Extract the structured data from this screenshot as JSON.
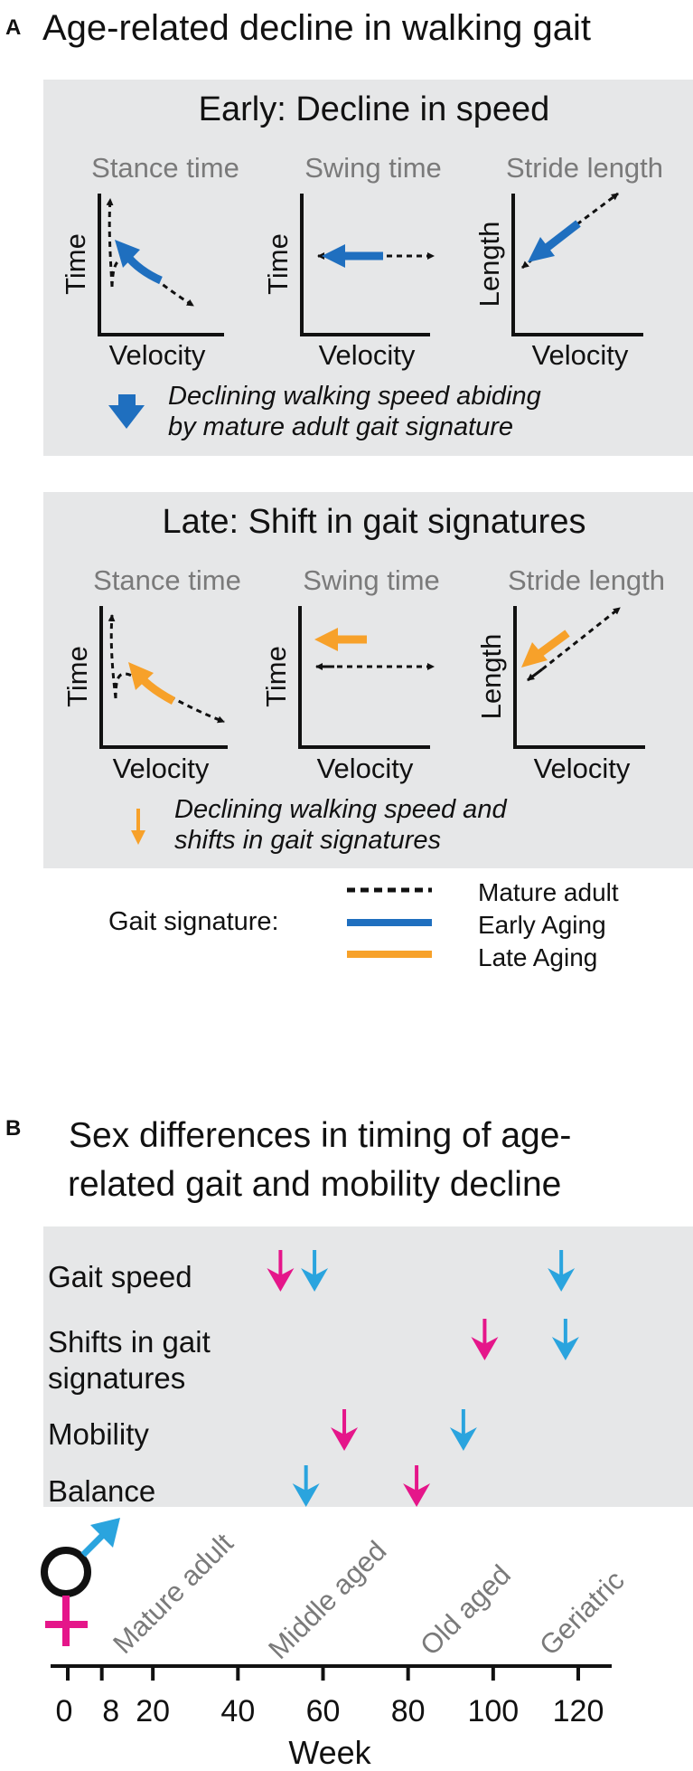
{
  "panel_a": {
    "letter": "A",
    "title": "Age-related decline in walking gait",
    "early": {
      "title": "Early: Decline in speed",
      "plots": [
        {
          "header": "Stance time",
          "ylabel": "Time",
          "xlabel": "Velocity"
        },
        {
          "header": "Swing time",
          "ylabel": "Time",
          "xlabel": "Velocity"
        },
        {
          "header": "Stride length",
          "ylabel": "Length",
          "xlabel": "Velocity"
        }
      ],
      "note_line1": "Declining walking speed abiding",
      "note_line2": "by mature adult gait signature"
    },
    "late": {
      "title": "Late: Shift in gait signatures",
      "plots": [
        {
          "header": "Stance time",
          "ylabel": "Time",
          "xlabel": "Velocity"
        },
        {
          "header": "Swing time",
          "ylabel": "Time",
          "xlabel": "Velocity"
        },
        {
          "header": "Stride length",
          "ylabel": "Length",
          "xlabel": "Velocity"
        }
      ],
      "note_line1": "Declining walking speed and",
      "note_line2": "shifts in gait signatures"
    },
    "legend": {
      "label": "Gait signature:",
      "items": [
        "Mature adult",
        "Early Aging",
        "Late Aging"
      ]
    }
  },
  "panel_b": {
    "letter": "B",
    "title_line1": "Sex differences in timing of age-",
    "title_line2": "related gait and mobility decline",
    "rows": [
      {
        "label": "Gait speed",
        "female_weeks": [
          50
        ],
        "male_weeks": [
          58,
          116
        ]
      },
      {
        "label_line1": "Shifts in gait",
        "label_line2": "signatures",
        "female_weeks": [
          98
        ],
        "male_weeks": [
          117
        ]
      },
      {
        "label": "Mobility",
        "female_weeks": [
          65
        ],
        "male_weeks": [
          93
        ]
      },
      {
        "label": "Balance",
        "female_weeks": [
          82
        ],
        "male_weeks": [
          56
        ]
      }
    ],
    "stages": [
      "Mature adult",
      "Middle aged",
      "Old aged",
      "Geriatric"
    ],
    "axis": {
      "label": "Week",
      "ticks": [
        0,
        8,
        20,
        40,
        60,
        80,
        100,
        120
      ],
      "min": 0,
      "max": 126
    },
    "colors": {
      "female": "#e5168a",
      "male": "#2aa4de",
      "early": "#1f6fbf",
      "late": "#f7a12a",
      "box": "#e6e7e8"
    }
  }
}
